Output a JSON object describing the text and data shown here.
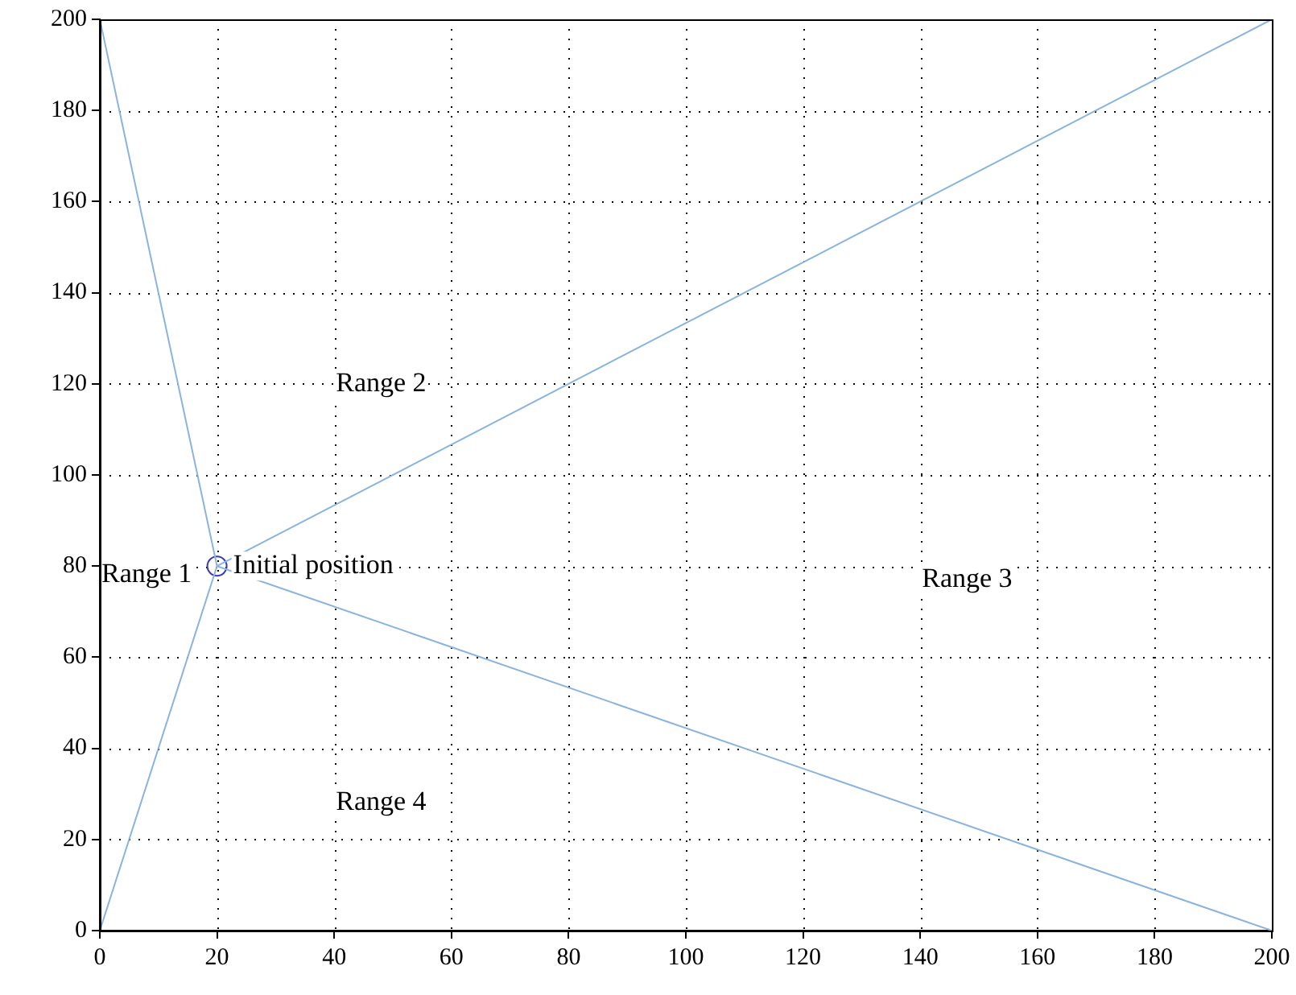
{
  "chart_data": {
    "type": "line",
    "xlim": [
      0,
      200
    ],
    "ylim": [
      0,
      200
    ],
    "xticks": [
      0,
      20,
      40,
      60,
      80,
      100,
      120,
      140,
      160,
      180,
      200
    ],
    "yticks": [
      0,
      20,
      40,
      60,
      80,
      100,
      120,
      140,
      160,
      180,
      200
    ],
    "grid": true,
    "legend": false,
    "line_style": "solid",
    "series": [
      {
        "color": "#8ab4de",
        "x": [
          20,
          0
        ],
        "values": [
          80,
          200
        ]
      },
      {
        "color": "#8ab4de",
        "x": [
          20,
          0
        ],
        "values": [
          80,
          0
        ]
      },
      {
        "color": "#8ab4de",
        "x": [
          20,
          200
        ],
        "values": [
          80,
          200
        ]
      },
      {
        "color": "#8ab4de",
        "x": [
          20,
          200
        ],
        "values": [
          80,
          0
        ]
      },
      {
        "type": "scatter",
        "color": "#3a3ab8",
        "marker": "circle",
        "x": [
          20
        ],
        "values": [
          80
        ]
      }
    ],
    "annotations": [
      "Range 1",
      {
        "text": "Initial position",
        "x": 20,
        "y": 80
      },
      "Range 2",
      "Range 3",
      "Range 4"
    ]
  }
}
